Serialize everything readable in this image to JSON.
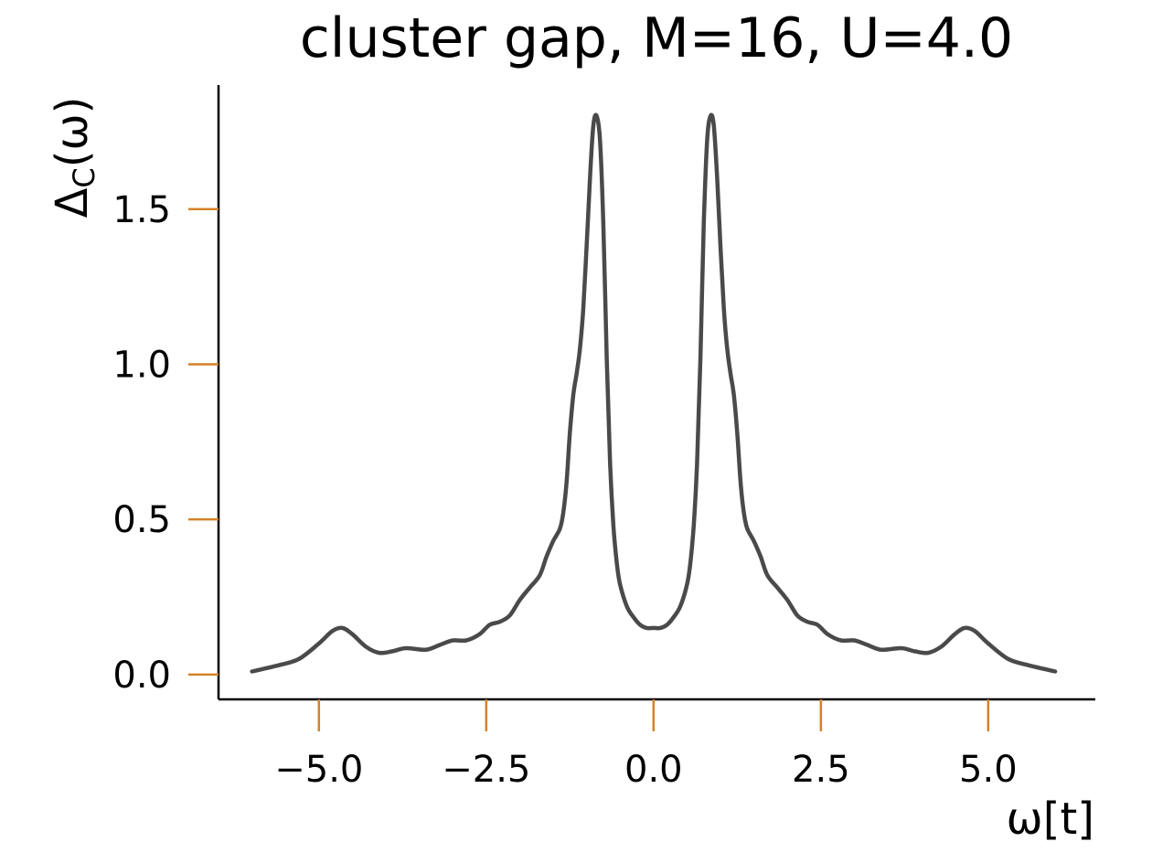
{
  "chart_data": {
    "type": "line",
    "title": "cluster gap, M=16, U=4.0",
    "xlabel": "ω[t]",
    "ylabel": "Δ",
    "ylabel_sub": "C",
    "ylabel_tail": "(ω)",
    "xlim": [
      -6.5,
      6.6
    ],
    "ylim": [
      -0.08,
      1.9
    ],
    "xticks": [
      -5.0,
      -2.5,
      0.0,
      2.5,
      5.0
    ],
    "xtick_labels": [
      "−5.0",
      "−2.5",
      "0.0",
      "2.5",
      "5.0"
    ],
    "yticks": [
      0.0,
      0.5,
      1.0,
      1.5
    ],
    "ytick_labels": [
      "0.0",
      "0.5",
      "1.0",
      "1.5"
    ],
    "grid": false,
    "colors": {
      "line": "#4a4a4a",
      "ticks": "#d4822a",
      "axes": "#000000"
    },
    "series": [
      {
        "x": [
          -6.0,
          -5.6,
          -5.3,
          -5.0,
          -4.8,
          -4.65,
          -4.5,
          -4.3,
          -4.1,
          -3.9,
          -3.7,
          -3.4,
          -3.2,
          -3.0,
          -2.8,
          -2.6,
          -2.45,
          -2.3,
          -2.15,
          -2.0,
          -1.85,
          -1.7,
          -1.6,
          -1.5,
          -1.4,
          -1.35,
          -1.3,
          -1.25,
          -1.2,
          -1.15,
          -1.1,
          -1.05,
          -1.0,
          -0.95,
          -0.9,
          -0.85,
          -0.8,
          -0.75,
          -0.7,
          -0.65,
          -0.6,
          -0.55,
          -0.5,
          -0.4,
          -0.3,
          -0.2,
          -0.1,
          0.0,
          0.1,
          0.2,
          0.3,
          0.4,
          0.5,
          0.55,
          0.6,
          0.65,
          0.7,
          0.75,
          0.8,
          0.85,
          0.9,
          0.95,
          1.0,
          1.05,
          1.1,
          1.15,
          1.2,
          1.25,
          1.3,
          1.35,
          1.4,
          1.5,
          1.6,
          1.7,
          1.85,
          2.0,
          2.15,
          2.3,
          2.45,
          2.6,
          2.8,
          3.0,
          3.2,
          3.4,
          3.7,
          3.9,
          4.1,
          4.3,
          4.5,
          4.65,
          4.8,
          5.0,
          5.3,
          5.6,
          6.0
        ],
        "y": [
          0.01,
          0.03,
          0.05,
          0.1,
          0.14,
          0.15,
          0.13,
          0.09,
          0.07,
          0.075,
          0.085,
          0.08,
          0.095,
          0.11,
          0.11,
          0.13,
          0.16,
          0.17,
          0.19,
          0.24,
          0.28,
          0.32,
          0.38,
          0.43,
          0.47,
          0.52,
          0.62,
          0.78,
          0.9,
          0.97,
          1.05,
          1.18,
          1.38,
          1.6,
          1.77,
          1.8,
          1.72,
          1.45,
          1.02,
          0.68,
          0.48,
          0.36,
          0.29,
          0.22,
          0.185,
          0.16,
          0.15,
          0.15,
          0.15,
          0.16,
          0.185,
          0.22,
          0.29,
          0.36,
          0.48,
          0.68,
          1.02,
          1.45,
          1.72,
          1.8,
          1.77,
          1.6,
          1.38,
          1.18,
          1.05,
          0.97,
          0.9,
          0.78,
          0.62,
          0.52,
          0.47,
          0.43,
          0.38,
          0.32,
          0.28,
          0.24,
          0.19,
          0.17,
          0.16,
          0.13,
          0.11,
          0.11,
          0.095,
          0.08,
          0.085,
          0.075,
          0.07,
          0.09,
          0.13,
          0.15,
          0.14,
          0.1,
          0.05,
          0.03,
          0.01
        ]
      }
    ]
  }
}
